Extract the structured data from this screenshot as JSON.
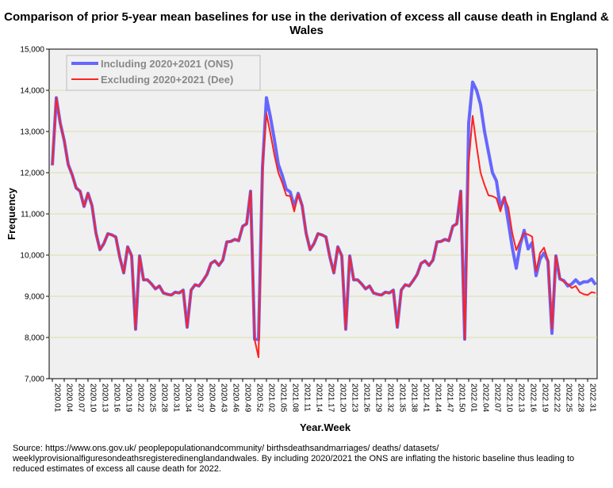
{
  "chart_data": {
    "type": "line",
    "title": "Comparison of prior 5-year mean baselines for use in the derivation of excess all cause death in England & Wales",
    "xlabel": "Year.Week",
    "ylabel": "Frequency",
    "ylim": [
      7000,
      15000
    ],
    "yticks": [
      7000,
      8000,
      9000,
      10000,
      11000,
      12000,
      13000,
      14000,
      15000
    ],
    "ytick_labels": [
      "7,000",
      "8,000",
      "9,000",
      "10,000",
      "11,000",
      "12,000",
      "13,000",
      "14,000",
      "15,000"
    ],
    "x_tick_labels": [
      "2020.01",
      "2020.04",
      "2020.07",
      "2020.10",
      "2020.13",
      "2020.16",
      "2020.19",
      "2020.22",
      "2020.25",
      "2020.28",
      "2020.31",
      "2020.34",
      "2020.37",
      "2020.40",
      "2020.43",
      "2020.46",
      "2020.49",
      "2020.52",
      "2021.02",
      "2021.05",
      "2021.08",
      "2021.11",
      "2021.14",
      "2021.17",
      "2021.20",
      "2021.23",
      "2021.26",
      "2021.29",
      "2021.32",
      "2021.35",
      "2021.38",
      "2021.41",
      "2021.44",
      "2021.47",
      "2021.50",
      "2022.01",
      "2022.04",
      "2022.07",
      "2022.10",
      "2022.13",
      "2022.16",
      "2022.19",
      "2022.22",
      "2022.25",
      "2022.28",
      "2022.31"
    ],
    "grid": true,
    "legend_position": "top-left",
    "series": [
      {
        "name": "Including 2020+2021 (ONS)",
        "color": "#6666ff",
        "values": [
          12180,
          13820,
          13200,
          12780,
          12200,
          11950,
          11630,
          11550,
          11180,
          11500,
          11200,
          10530,
          10130,
          10280,
          10520,
          10490,
          10440,
          9950,
          9570,
          10200,
          9980,
          8200,
          9980,
          9400,
          9400,
          9300,
          9180,
          9250,
          9080,
          9050,
          9030,
          9100,
          9080,
          9150,
          8250,
          9150,
          9280,
          9250,
          9380,
          9530,
          9800,
          9860,
          9750,
          9880,
          10320,
          10330,
          10380,
          10350,
          10700,
          10760,
          11550,
          7960,
          7950,
          12130,
          13820,
          13350,
          12800,
          12200,
          11930,
          11600,
          11530,
          11180,
          11500,
          11200,
          10530,
          10130,
          10280,
          10520,
          10490,
          10440,
          9950,
          9570,
          10200,
          9980,
          8200,
          9980,
          9400,
          9400,
          9300,
          9180,
          9250,
          9080,
          9050,
          9030,
          9100,
          9080,
          9150,
          8250,
          9150,
          9280,
          9250,
          9380,
          9530,
          9800,
          9860,
          9750,
          9880,
          10320,
          10330,
          10380,
          10350,
          10700,
          10760,
          11550,
          7960,
          13200,
          14200,
          14000,
          13650,
          13000,
          12500,
          12000,
          11800,
          11150,
          11400,
          10800,
          10180,
          9680,
          10250,
          10600,
          10150,
          10300,
          9500,
          9900,
          10050,
          9850,
          8100,
          9980,
          9420,
          9380,
          9250,
          9300,
          9400,
          9300,
          9350,
          9350,
          9420,
          9280
        ]
      },
      {
        "name": "Excluding 2020+2021 (Dee)",
        "color": "#ff2222",
        "values": [
          12180,
          13820,
          13200,
          12780,
          12200,
          11950,
          11630,
          11550,
          11180,
          11500,
          11200,
          10530,
          10130,
          10280,
          10520,
          10490,
          10440,
          9950,
          9570,
          10200,
          9980,
          8200,
          9980,
          9400,
          9400,
          9300,
          9180,
          9250,
          9080,
          9050,
          9030,
          9100,
          9080,
          9150,
          8250,
          9150,
          9280,
          9250,
          9380,
          9530,
          9800,
          9860,
          9750,
          9880,
          10320,
          10330,
          10380,
          10350,
          10700,
          10760,
          11550,
          7960,
          7520,
          12130,
          13430,
          12950,
          12430,
          12000,
          11750,
          11450,
          11430,
          11060,
          11480,
          11200,
          10530,
          10130,
          10280,
          10520,
          10490,
          10440,
          9950,
          9570,
          10200,
          9980,
          8200,
          9980,
          9400,
          9400,
          9300,
          9180,
          9250,
          9080,
          9050,
          9030,
          9100,
          9080,
          9150,
          8250,
          9150,
          9280,
          9250,
          9380,
          9530,
          9800,
          9860,
          9750,
          9880,
          10320,
          10330,
          10380,
          10350,
          10700,
          10760,
          11550,
          7960,
          12240,
          13380,
          12650,
          12000,
          11700,
          11450,
          11430,
          11380,
          11060,
          11400,
          11150,
          10530,
          10120,
          10350,
          10530,
          10500,
          10450,
          9600,
          10050,
          10180,
          9880,
          8200,
          9980,
          9450,
          9350,
          9300,
          9200,
          9250,
          9100,
          9050,
          9030,
          9100,
          9080
        ]
      }
    ]
  },
  "source_note": "Source: https://www.ons.gov.uk/ peoplepopulationandcommunity/ birthsdeathsandmarriages/ deaths/ datasets/ weeklyprovisionalfiguresondeathsregisteredinenglandandwales. By including 2020/2021 the ONS are inflating the historic baseline thus leading to reduced estimates of excess all cause death for 2022."
}
